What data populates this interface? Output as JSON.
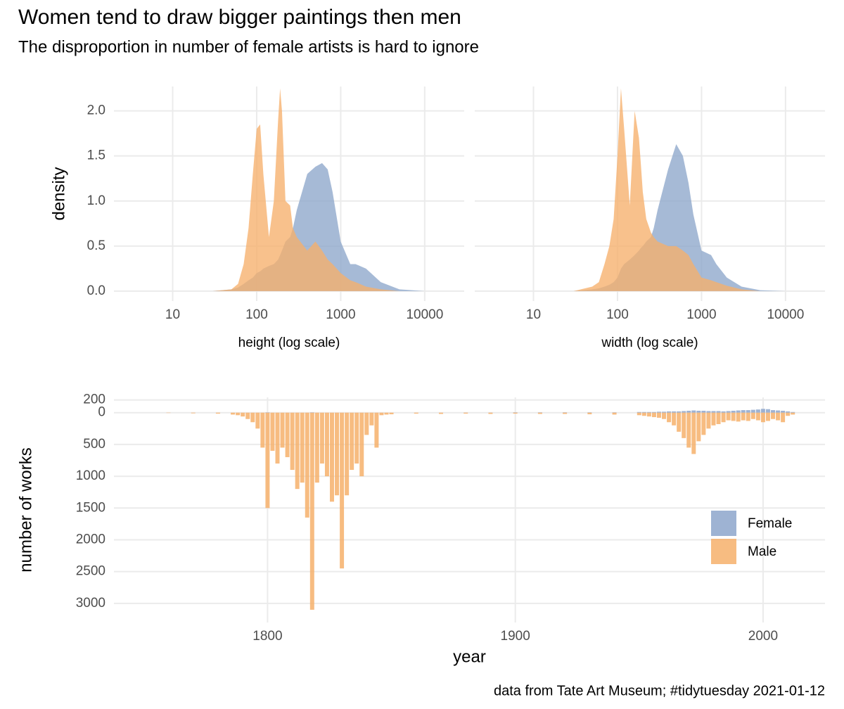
{
  "title": "Women tend to draw bigger paintings then men",
  "subtitle": "The disproportion in number of female artists is hard to ignore",
  "caption": "data from  Tate Art Museum; #tidytuesday 2021-01-12",
  "chart_data": [
    {
      "type": "area",
      "xlabel": "height (log scale)",
      "ylabel": "density",
      "xlog": true,
      "grid": true,
      "xlim": [
        2,
        29500
      ],
      "xticks": [
        10,
        100,
        1000,
        10000
      ],
      "ylim": [
        -0.11,
        2.27
      ],
      "yticks": [
        {
          "value": 0,
          "label": "0.0"
        },
        0.5,
        {
          "value": 1,
          "label": "1.0"
        },
        1.5,
        {
          "value": 2,
          "label": "2.0"
        }
      ],
      "x": [
        30,
        50,
        60,
        70,
        80,
        90,
        100,
        110,
        120,
        140,
        160,
        180,
        190,
        200,
        220,
        250,
        270,
        300,
        400,
        500,
        600,
        700,
        800,
        1000,
        1300,
        1500,
        2000,
        3000,
        5000,
        10000,
        20000
      ],
      "series": [
        {
          "color": "#8da6cb",
          "values": [
            0,
            0.02,
            0.04,
            0.08,
            0.12,
            0.15,
            0.2,
            0.22,
            0.25,
            0.28,
            0.3,
            0.35,
            0.4,
            0.45,
            0.55,
            0.6,
            0.7,
            0.9,
            1.3,
            1.38,
            1.42,
            1.35,
            1.1,
            0.55,
            0.3,
            0.3,
            0.25,
            0.1,
            0.02,
            0,
            0
          ]
        },
        {
          "color": "#f6b06b",
          "values": [
            0,
            0.02,
            0.08,
            0.3,
            0.7,
            1.3,
            1.8,
            1.85,
            1.3,
            0.6,
            1.0,
            1.9,
            2.25,
            2.0,
            1.0,
            0.95,
            0.7,
            0.6,
            0.45,
            0.55,
            0.45,
            0.35,
            0.3,
            0.2,
            0.12,
            0.1,
            0.05,
            0.02,
            0,
            0,
            0
          ]
        }
      ]
    },
    {
      "type": "area",
      "xlabel": "width (log scale)",
      "xlog": true,
      "grid": true,
      "sharey": true,
      "xlim": [
        2,
        29500
      ],
      "xticks": [
        10,
        100,
        1000,
        10000
      ],
      "ylim": [
        -0.11,
        2.27
      ],
      "x": [
        30,
        50,
        60,
        70,
        80,
        90,
        100,
        110,
        120,
        140,
        160,
        180,
        190,
        200,
        220,
        250,
        270,
        300,
        400,
        500,
        600,
        700,
        800,
        1000,
        1300,
        1500,
        2000,
        3000,
        5000,
        10000,
        20000
      ],
      "series": [
        {
          "color": "#8da6cb",
          "values": [
            0,
            0.02,
            0.03,
            0.05,
            0.07,
            0.1,
            0.15,
            0.25,
            0.3,
            0.35,
            0.4,
            0.45,
            0.48,
            0.5,
            0.55,
            0.6,
            0.7,
            0.9,
            1.35,
            1.63,
            1.5,
            1.2,
            0.85,
            0.45,
            0.4,
            0.3,
            0.15,
            0.05,
            0.01,
            0,
            0
          ]
        },
        {
          "color": "#f6b06b",
          "values": [
            0,
            0.05,
            0.1,
            0.3,
            0.5,
            0.8,
            1.5,
            2.25,
            1.8,
            0.95,
            2.0,
            1.7,
            1.4,
            1.1,
            0.8,
            0.65,
            0.6,
            0.55,
            0.5,
            0.5,
            0.45,
            0.4,
            0.3,
            0.15,
            0.12,
            0.1,
            0.06,
            0.02,
            0,
            0,
            0
          ]
        }
      ]
    },
    {
      "type": "bar",
      "xlabel": "year",
      "ylabel": "number of works",
      "grid": true,
      "legend": "right",
      "xlim": [
        1738,
        2025
      ],
      "xticks": [
        1800,
        1900,
        2000
      ],
      "ylim": [
        -3300,
        240
      ],
      "yticks": [
        200,
        0,
        {
          "value": -500,
          "label": "500"
        },
        {
          "value": -1000,
          "label": "1000"
        },
        {
          "value": -1500,
          "label": "1500"
        },
        {
          "value": -2000,
          "label": "2000"
        },
        {
          "value": -2500,
          "label": "2500"
        },
        {
          "value": -3000,
          "label": "3000"
        }
      ],
      "x": [
        1760,
        1770,
        1780,
        1786,
        1788,
        1790,
        1792,
        1794,
        1796,
        1798,
        1800,
        1802,
        1804,
        1806,
        1808,
        1810,
        1812,
        1814,
        1816,
        1818,
        1820,
        1822,
        1824,
        1826,
        1828,
        1830,
        1832,
        1834,
        1836,
        1838,
        1840,
        1842,
        1844,
        1846,
        1848,
        1850,
        1860,
        1870,
        1880,
        1890,
        1900,
        1910,
        1920,
        1930,
        1940,
        1950,
        1952,
        1954,
        1956,
        1958,
        1960,
        1962,
        1964,
        1966,
        1968,
        1970,
        1972,
        1974,
        1976,
        1978,
        1980,
        1982,
        1984,
        1986,
        1988,
        1990,
        1992,
        1994,
        1996,
        1998,
        2000,
        2002,
        2004,
        2006,
        2008,
        2010,
        2012
      ],
      "series": [
        {
          "name": "Female",
          "color": "#8da6cb",
          "values": [
            0,
            0,
            0,
            0,
            0,
            0,
            0,
            0,
            0,
            0,
            5,
            0,
            0,
            0,
            0,
            0,
            0,
            0,
            0,
            5,
            0,
            0,
            0,
            0,
            0,
            0,
            0,
            0,
            0,
            0,
            0,
            0,
            0,
            0,
            0,
            0,
            0,
            0,
            2,
            2,
            5,
            5,
            5,
            5,
            5,
            10,
            10,
            10,
            10,
            15,
            15,
            20,
            20,
            20,
            25,
            30,
            35,
            30,
            30,
            25,
            25,
            25,
            20,
            25,
            30,
            35,
            40,
            40,
            45,
            50,
            60,
            55,
            40,
            35,
            30,
            20,
            10
          ]
        },
        {
          "name": "Male",
          "color": "#f6b06b",
          "values": [
            -5,
            -10,
            -15,
            -30,
            -40,
            -60,
            -100,
            -150,
            -250,
            -550,
            -1500,
            -600,
            -800,
            -550,
            -700,
            -900,
            -1200,
            -1100,
            -1650,
            -3100,
            -1100,
            -800,
            -1000,
            -1400,
            -1300,
            -2450,
            -1300,
            -900,
            -800,
            -1000,
            -350,
            -200,
            -550,
            -40,
            -30,
            -25,
            -15,
            -20,
            -15,
            -20,
            -15,
            -20,
            -20,
            -25,
            -30,
            -40,
            -50,
            -60,
            -70,
            -80,
            -100,
            -150,
            -200,
            -300,
            -400,
            -550,
            -650,
            -450,
            -350,
            -250,
            -200,
            -180,
            -150,
            -120,
            -130,
            -140,
            -120,
            -130,
            -100,
            -120,
            -150,
            -130,
            -100,
            -120,
            -150,
            -50,
            -30
          ]
        }
      ]
    }
  ]
}
